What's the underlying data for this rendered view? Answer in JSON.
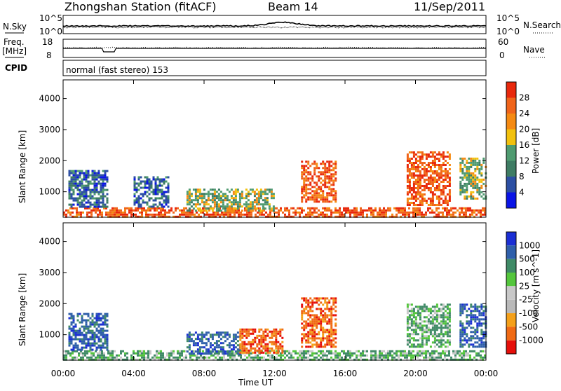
{
  "header": {
    "title": "Zhongshan Station (fitACF)",
    "beam": "Beam 14",
    "date": "11/Sep/2011"
  },
  "status_panels": {
    "nsky_label": "N.Sky",
    "nsky_top": "10^5",
    "nsky_bottom": "10^0",
    "nsearch_label": "N.Search",
    "nsearch_top": "10^5",
    "nsearch_bottom": "10^0",
    "freq_label": "Freq.",
    "freq_unit": "[MHz]",
    "freq_top": "18",
    "freq_bottom": "8",
    "nave_label": "Nave",
    "nave_top": "60",
    "nave_bottom": "0",
    "cpid_label": "CPID",
    "cpid_text": "normal (fast stereo) 153"
  },
  "x_axis": {
    "label": "Time UT",
    "ticks": [
      "00:00",
      "04:00",
      "08:00",
      "12:00",
      "16:00",
      "20:00",
      "00:00"
    ]
  },
  "colors": {
    "power": [
      "#0a14e6",
      "#2c4fa3",
      "#3e7c63",
      "#4f9b70",
      "#f2c10e",
      "#f58a12",
      "#f0641a",
      "#e8280c"
    ],
    "velocity": [
      "#e60f0a",
      "#f06a14",
      "#f4a01a",
      "#b9b9b9",
      "#c8c8c8",
      "#54c63c",
      "#3f8a66",
      "#2f5faa",
      "#1b2fd4"
    ]
  },
  "chart_data": [
    {
      "type": "heatmap",
      "panel": "power",
      "title": "",
      "xlabel": "Time UT",
      "ylabel": "Slant Range [km]",
      "x_range_hours": [
        0,
        24
      ],
      "ylim": [
        180,
        4600
      ],
      "y_ticks": [
        1000,
        2000,
        3000,
        4000
      ],
      "colorbar": {
        "label": "Power [dB]",
        "range": [
          0,
          32
        ],
        "ticks": [
          "28",
          "24",
          "20",
          "16",
          "12",
          "8",
          "4"
        ]
      },
      "echo_regions": [
        {
          "t_start": 0.0,
          "t_end": 24.0,
          "r_start": 180,
          "r_end": 500,
          "level": "high"
        },
        {
          "t_start": 0.3,
          "t_end": 2.5,
          "r_start": 500,
          "r_end": 1700,
          "level": "low"
        },
        {
          "t_start": 4.0,
          "t_end": 6.0,
          "r_start": 500,
          "r_end": 1500,
          "level": "low"
        },
        {
          "t_start": 7.0,
          "t_end": 12.0,
          "r_start": 400,
          "r_end": 1100,
          "level": "medium"
        },
        {
          "t_start": 13.5,
          "t_end": 15.5,
          "r_start": 700,
          "r_end": 2000,
          "level": "high"
        },
        {
          "t_start": 19.5,
          "t_end": 22.0,
          "r_start": 600,
          "r_end": 2300,
          "level": "high"
        },
        {
          "t_start": 22.5,
          "t_end": 24.0,
          "r_start": 800,
          "r_end": 2100,
          "level": "medium"
        }
      ]
    },
    {
      "type": "heatmap",
      "panel": "velocity",
      "title": "",
      "xlabel": "Time UT",
      "ylabel": "Slant Range [km]",
      "x_range_hours": [
        0,
        24
      ],
      "ylim": [
        180,
        4600
      ],
      "y_ticks": [
        1000,
        2000,
        3000,
        4000
      ],
      "colorbar": {
        "label": "Velocity [m s^-1]",
        "ticks": [
          "1000",
          "500",
          "100",
          "25",
          "-25",
          "-100",
          "-500",
          "-1000"
        ]
      },
      "echo_regions": [
        {
          "t_start": 0.0,
          "t_end": 24.0,
          "r_start": 180,
          "r_end": 500,
          "level": "slow"
        },
        {
          "t_start": 0.3,
          "t_end": 2.5,
          "r_start": 500,
          "r_end": 1700,
          "level": "positive"
        },
        {
          "t_start": 7.0,
          "t_end": 10.0,
          "r_start": 400,
          "r_end": 1100,
          "level": "positive"
        },
        {
          "t_start": 10.0,
          "t_end": 12.5,
          "r_start": 400,
          "r_end": 1200,
          "level": "negative"
        },
        {
          "t_start": 13.5,
          "t_end": 15.5,
          "r_start": 600,
          "r_end": 2200,
          "level": "negative"
        },
        {
          "t_start": 19.5,
          "t_end": 22.0,
          "r_start": 600,
          "r_end": 2000,
          "level": "slow"
        },
        {
          "t_start": 22.5,
          "t_end": 24.0,
          "r_start": 600,
          "r_end": 2000,
          "level": "positive"
        }
      ]
    }
  ]
}
